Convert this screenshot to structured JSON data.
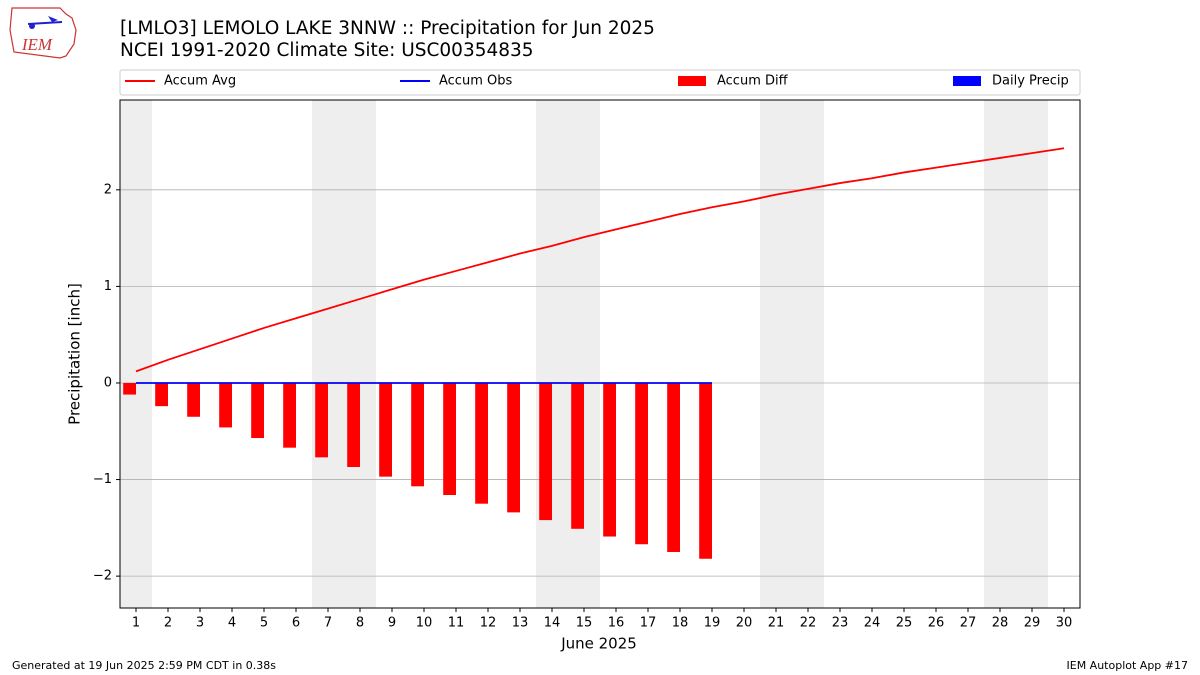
{
  "logo_text": "IEM",
  "footer": {
    "left": "Generated at 19 Jun 2025 2:59 PM CDT in 0.38s",
    "right": "IEM Autoplot App #17"
  },
  "chart_data": {
    "type": "combo",
    "title": "[LMLO3] LEMOLO LAKE  3NNW :: Precipitation for Jun 2025",
    "subtitle": "NCEI 1991-2020 Climate Site: USC00354835",
    "x_label": "June 2025",
    "y_label": "Precipitation [inch]",
    "x": [
      1,
      2,
      3,
      4,
      5,
      6,
      7,
      8,
      9,
      10,
      11,
      12,
      13,
      14,
      15,
      16,
      17,
      18,
      19,
      20,
      21,
      22,
      23,
      24,
      25,
      26,
      27,
      28,
      29,
      30
    ],
    "xlim": [
      0.5,
      30.5
    ],
    "xticks": [
      1,
      2,
      3,
      4,
      5,
      6,
      7,
      8,
      9,
      10,
      11,
      12,
      13,
      14,
      15,
      16,
      17,
      18,
      19,
      20,
      21,
      22,
      23,
      24,
      25,
      26,
      27,
      28,
      29,
      30
    ],
    "ylim": [
      -2.33,
      2.93
    ],
    "yticks": [
      {
        "value": -2,
        "label": "−2"
      },
      {
        "value": -1,
        "label": "−1"
      },
      0,
      1,
      2
    ],
    "grid": true,
    "shaded_days": [
      1,
      7,
      8,
      14,
      15,
      21,
      22,
      28,
      29
    ],
    "series": [
      {
        "name": "Accum Avg",
        "kind": "line",
        "color": "#ff0000",
        "values": [
          0.12,
          0.24,
          0.35,
          0.46,
          0.57,
          0.67,
          0.77,
          0.87,
          0.97,
          1.07,
          1.16,
          1.25,
          1.34,
          1.42,
          1.51,
          1.59,
          1.67,
          1.75,
          1.82,
          1.88,
          1.95,
          2.01,
          2.07,
          2.12,
          2.18,
          2.23,
          2.28,
          2.33,
          2.38,
          2.43
        ]
      },
      {
        "name": "Accum Obs",
        "kind": "line",
        "color": "#0000ff",
        "values": [
          0,
          0,
          0,
          0,
          0,
          0,
          0,
          0,
          0,
          0,
          0,
          0,
          0,
          0,
          0,
          0,
          0,
          0,
          0,
          null,
          null,
          null,
          null,
          null,
          null,
          null,
          null,
          null,
          null,
          null
        ]
      },
      {
        "name": "Accum Diff",
        "kind": "bar",
        "color": "#ff0000",
        "values": [
          -0.12,
          -0.24,
          -0.35,
          -0.46,
          -0.57,
          -0.67,
          -0.77,
          -0.87,
          -0.97,
          -1.07,
          -1.16,
          -1.25,
          -1.34,
          -1.42,
          -1.51,
          -1.59,
          -1.67,
          -1.75,
          -1.82,
          null,
          null,
          null,
          null,
          null,
          null,
          null,
          null,
          null,
          null,
          null
        ]
      },
      {
        "name": "Daily Precip",
        "kind": "bar",
        "color": "#0000ff",
        "values": [
          0,
          0,
          0,
          0,
          0,
          0,
          0,
          0,
          0,
          0,
          0,
          0,
          0,
          0,
          0,
          0,
          0,
          0,
          0,
          null,
          null,
          null,
          null,
          null,
          null,
          null,
          null,
          null,
          null,
          null
        ]
      }
    ]
  }
}
